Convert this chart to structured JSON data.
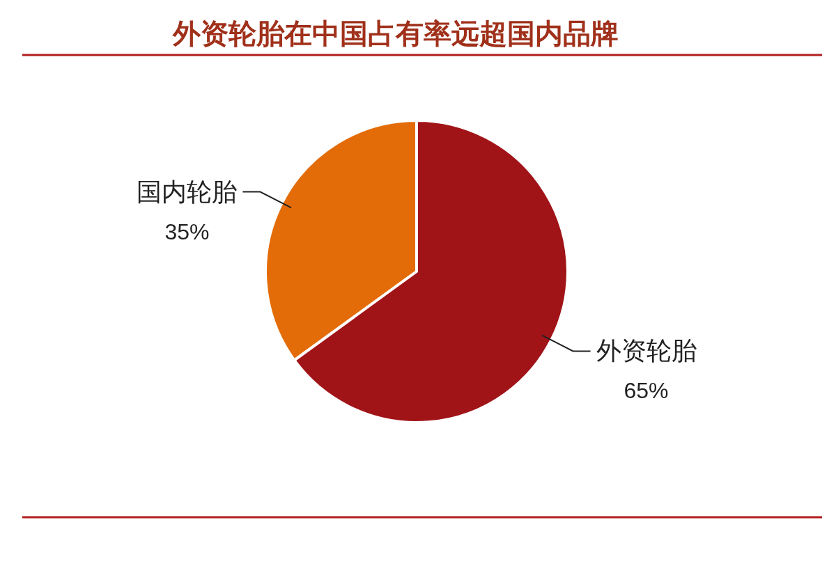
{
  "chart_data": {
    "type": "pie",
    "title": "外资轮胎在中国占有率远超国内品牌",
    "categories": [
      "国内轮胎",
      "外资轮胎"
    ],
    "values": [
      35,
      65
    ],
    "colors": [
      "#e36c09",
      "#a01418"
    ],
    "value_labels": [
      "35%",
      "65%"
    ]
  }
}
